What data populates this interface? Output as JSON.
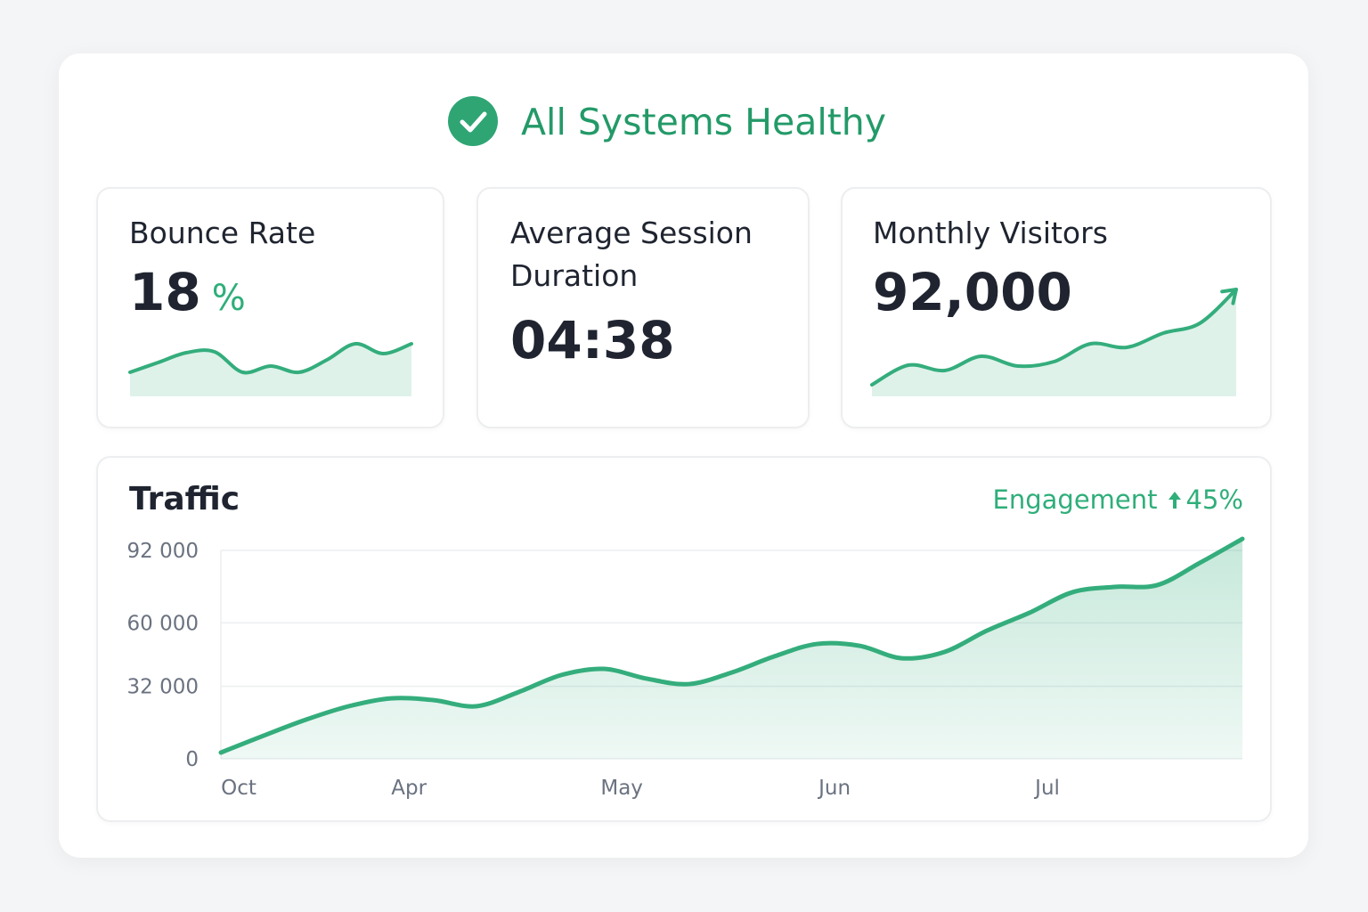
{
  "header": {
    "title": "All Systems Healthy"
  },
  "cards": [
    {
      "title": "Bounce Rate",
      "value": "18",
      "unit": "%",
      "sparkline": [
        27,
        38,
        49,
        50,
        27,
        34,
        27,
        41,
        59,
        48,
        59
      ]
    },
    {
      "title": "Average Session Duration",
      "value": "04:38"
    },
    {
      "title": "Monthly Visitors",
      "value": "92,000",
      "sparkline": [
        13,
        35,
        29,
        45,
        34,
        39,
        59,
        55,
        71,
        82,
        120
      ]
    }
  ],
  "traffic": {
    "title": "Traffic",
    "engagement": {
      "label": "Engagement",
      "value": "45%"
    },
    "chart_data": {
      "type": "area",
      "categories": [
        "Oct",
        null,
        null,
        null,
        "Apr",
        null,
        null,
        null,
        null,
        "May",
        null,
        null,
        null,
        null,
        "Jun",
        null,
        null,
        null,
        null,
        "Jul",
        null,
        null,
        null,
        null,
        null
      ],
      "values": [
        2750,
        10200,
        17300,
        23200,
        26700,
        25900,
        23200,
        29500,
        37000,
        39700,
        35400,
        33000,
        38100,
        45200,
        50700,
        49900,
        44400,
        47200,
        56600,
        64500,
        73500,
        75900,
        76700,
        86500,
        97100
      ],
      "color": "#34ad7c",
      "ylim": [
        0,
        92000
      ],
      "yticks": [
        0,
        {
          "value": 32000,
          "label": "32 000"
        },
        {
          "value": 60000,
          "label": "60 000"
        },
        {
          "value": 92000,
          "label": "92 000"
        }
      ],
      "grid": true
    }
  }
}
